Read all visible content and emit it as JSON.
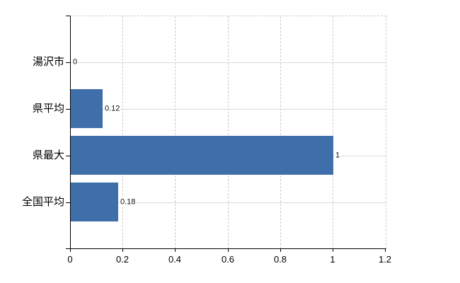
{
  "chart_data": {
    "type": "bar",
    "orientation": "horizontal",
    "title": "",
    "xlabel": "",
    "ylabel": "",
    "categories": [
      "湯沢市",
      "県平均",
      "県最大",
      "全国平均"
    ],
    "values": [
      0,
      0.12,
      1,
      0.18
    ],
    "value_labels": [
      "0",
      "0.12",
      "1",
      "0.18"
    ],
    "x_ticks": [
      0,
      0.2,
      0.4,
      0.6,
      0.8,
      1,
      1.2
    ],
    "x_tick_labels": [
      "0",
      "0.2",
      "0.4",
      "0.6",
      "0.8",
      "1",
      "1.2"
    ],
    "xlim": [
      0,
      1.2
    ],
    "grid": true,
    "legend": false,
    "colors": {
      "bar": "#3f6fab",
      "axis": "#000000",
      "h_gridline": "#d7ddd3",
      "v_gridline": "#d2c6d0",
      "dashed_border": "#d5c9d3",
      "background": "#ffffff",
      "text": "#000000"
    }
  }
}
